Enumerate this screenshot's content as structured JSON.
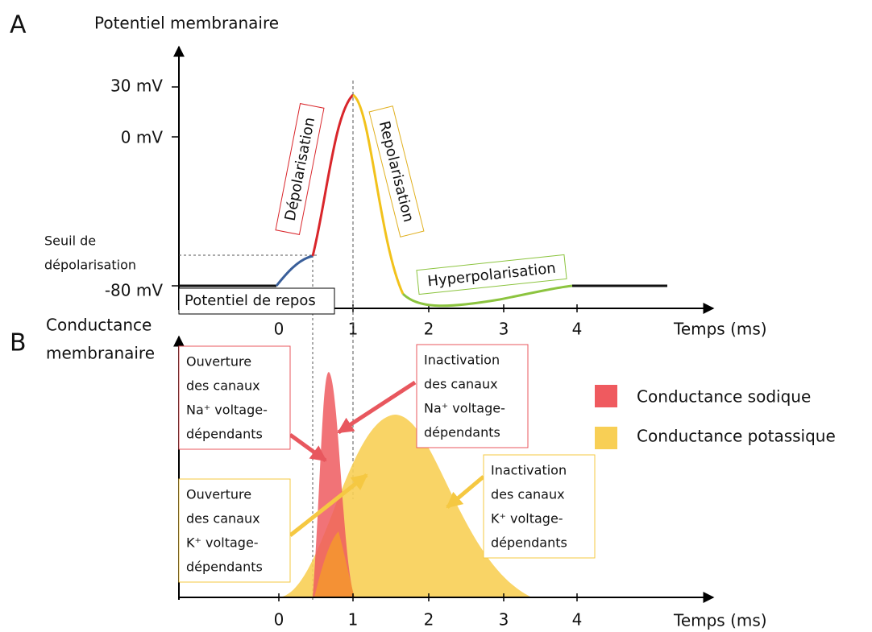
{
  "panel_a": {
    "label": "A",
    "title": "Potentiel membranaire",
    "y_labels": [
      "30 mV",
      "0 mV",
      "-80 mV"
    ],
    "x_labels": [
      "0",
      "1",
      "2",
      "3",
      "4"
    ],
    "x_axis_title": "Temps (ms)",
    "threshold": [
      "Seuil de",
      "dépolarisation"
    ],
    "resting": "Potentiel de repos",
    "depolarisation": "Dépolarisation",
    "repolarisation": "Repolarisation",
    "hyperpolarisation": "Hyperpolarisation"
  },
  "panel_b": {
    "label": "B",
    "title": [
      "Conductance",
      "membranaire"
    ],
    "x_labels": [
      "0",
      "1",
      "2",
      "3",
      "4"
    ],
    "x_axis_title": "Temps (ms)",
    "legend": [
      "Conductance sodique",
      "Conductance potassique"
    ],
    "callouts": [
      [
        "Ouverture",
        "des canaux",
        "Na⁺ voltage-",
        "dépendants"
      ],
      [
        "Inactivation",
        "des canaux",
        "Na⁺ voltage-",
        "dépendants"
      ],
      [
        "Ouverture",
        "des canaux",
        "K⁺ voltage-",
        "dépendants"
      ],
      [
        "Inactivation",
        "des canaux",
        "K⁺ voltage-",
        "dépendants"
      ]
    ]
  }
}
